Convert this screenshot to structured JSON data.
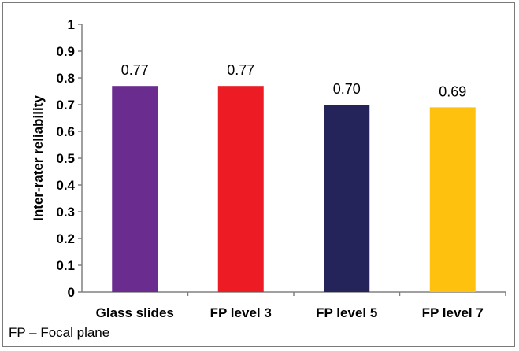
{
  "chart_data": {
    "type": "bar",
    "categories": [
      "Glass slides",
      "FP level 3",
      "FP level 5",
      "FP level 7"
    ],
    "values": [
      0.77,
      0.77,
      0.7,
      0.69
    ],
    "value_labels": [
      "0.77",
      "0.77",
      "0.70",
      "0.69"
    ],
    "colors": [
      "#6a2c8f",
      "#ed1c24",
      "#24245a",
      "#fec20e"
    ],
    "ylabel": "Inter-rater reliability",
    "xlabel": "",
    "ylim": [
      0,
      1
    ],
    "yticks": [
      0,
      0.1,
      0.2,
      0.3,
      0.4,
      0.5,
      0.6,
      0.7,
      0.8,
      0.9,
      1
    ],
    "ytick_labels": [
      "0",
      "0.1",
      "0.2",
      "0.3",
      "0.4",
      "0.5",
      "0.6",
      "0.7",
      "0.8",
      "0.9",
      "1"
    ],
    "grid": false,
    "legend": "none"
  },
  "footnote": "FP – Focal plane"
}
